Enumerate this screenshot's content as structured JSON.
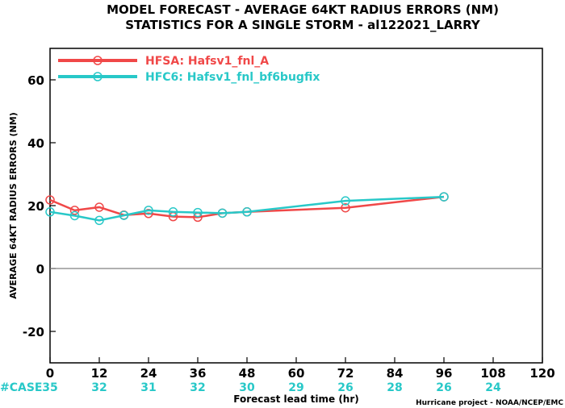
{
  "chart_data": {
    "type": "line",
    "title_line1": "MODEL FORECAST - AVERAGE 64KT RADIUS ERRORS (NM)",
    "title_line2": "STATISTICS FOR A SINGLE STORM - al122021_LARRY",
    "xlabel": "Forecast lead time (hr)",
    "ylabel": "AVERAGE 64KT RADIUS ERRORS (NM)",
    "xlim": [
      0,
      120
    ],
    "ylim": [
      -30,
      70
    ],
    "x_ticks": [
      0,
      12,
      24,
      36,
      48,
      60,
      72,
      84,
      96,
      108,
      120
    ],
    "y_ticks": [
      -20,
      0,
      20,
      40,
      60
    ],
    "legend_position": "top-left",
    "series": [
      {
        "name": "HFSA: Hafsv1_fnl_A",
        "color": "#f04848",
        "x": [
          0,
          6,
          12,
          18,
          24,
          30,
          36,
          42,
          48,
          72,
          96
        ],
        "y": [
          21.8,
          18.5,
          19.5,
          17.0,
          17.5,
          16.5,
          16.3,
          17.6,
          18.0,
          19.3,
          22.8
        ]
      },
      {
        "name": "HFC6: Hafsv1_fnl_bf6bugfix",
        "color": "#28c8c8",
        "x": [
          0,
          6,
          12,
          18,
          24,
          30,
          36,
          42,
          48,
          72,
          96
        ],
        "y": [
          18.0,
          16.8,
          15.3,
          16.9,
          18.5,
          18.0,
          17.8,
          17.6,
          18.0,
          21.5,
          22.8
        ]
      }
    ],
    "case_label": "#CASE",
    "case_x": [
      0,
      12,
      24,
      36,
      48,
      60,
      72,
      84,
      96,
      108
    ],
    "case_counts": [
      "35",
      "32",
      "31",
      "32",
      "30",
      "29",
      "26",
      "28",
      "26",
      "24"
    ],
    "credit": "Hurricane project - NOAA/NCEP/EMC",
    "zero_line_color": "#808080"
  }
}
